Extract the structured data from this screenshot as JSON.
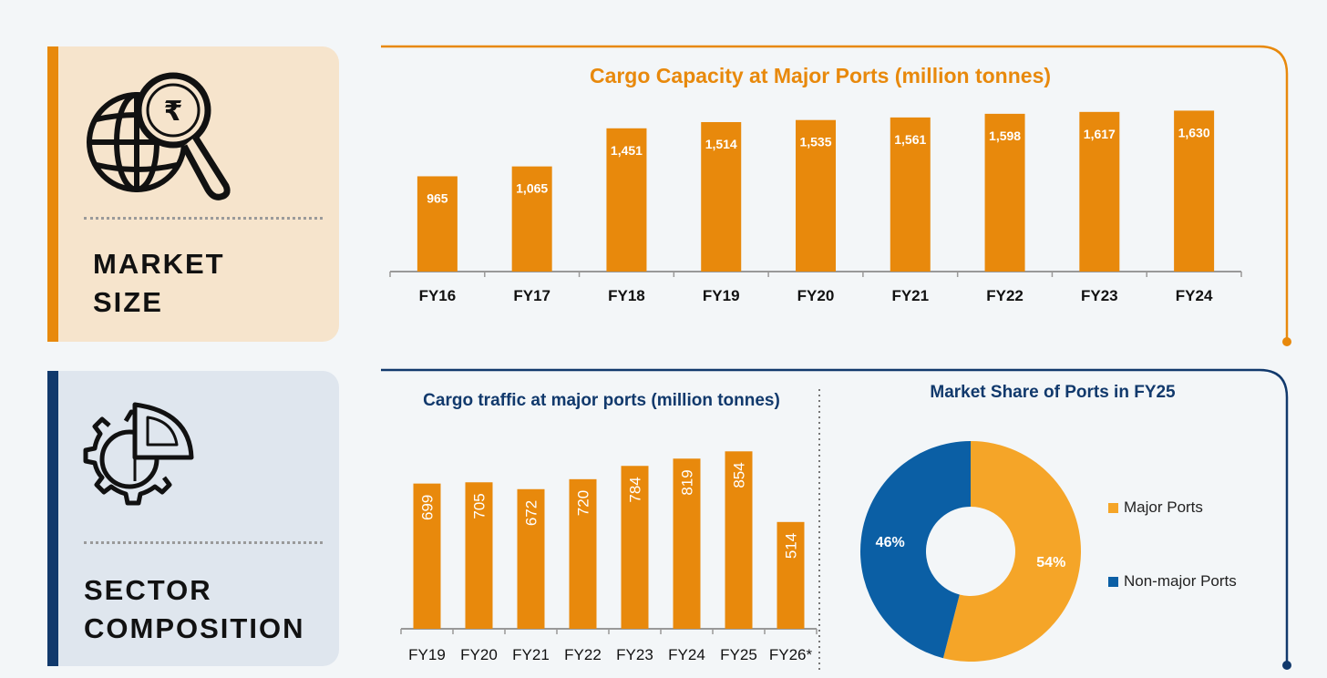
{
  "sections": {
    "market": {
      "label_line1": "MARKET",
      "label_line2": "SIZE",
      "icon": "globe-rupee-magnifier-icon"
    },
    "sector": {
      "label_line1": "SECTOR",
      "label_line2": "COMPOSITION",
      "icon": "gear-pie-chart-icon"
    }
  },
  "colors": {
    "orange": "#e8890c",
    "navy": "#11396c",
    "pie_orange": "#f5a528",
    "pie_blue": "#0b5fa5"
  },
  "chart_data": [
    {
      "type": "bar",
      "title": "Cargo Capacity at Major Ports (million tonnes)",
      "categories": [
        "FY16",
        "FY17",
        "FY18",
        "FY19",
        "FY20",
        "FY21",
        "FY22",
        "FY23",
        "FY24"
      ],
      "values": [
        965,
        1065,
        1451,
        1514,
        1535,
        1561,
        1598,
        1617,
        1630
      ],
      "labels": [
        "965",
        "1,065",
        "1,451",
        "1,514",
        "1,535",
        "1,561",
        "1,598",
        "1,617",
        "1,630"
      ],
      "ylim": [
        0,
        1800
      ]
    },
    {
      "type": "bar",
      "title": "Cargo traffic at major ports (million tonnes)",
      "categories": [
        "FY19",
        "FY20",
        "FY21",
        "FY22",
        "FY23",
        "FY24",
        "FY25",
        "FY26*"
      ],
      "values": [
        699,
        705,
        672,
        720,
        784,
        819,
        854,
        514
      ],
      "labels": [
        "699",
        "705",
        "672",
        "720",
        "784",
        "819",
        "854",
        "514"
      ],
      "ylim": [
        0,
        1000
      ]
    },
    {
      "type": "pie",
      "title": "Market Share of Ports in FY25",
      "slices": [
        {
          "name": "Major Ports",
          "value": 54,
          "label": "54%"
        },
        {
          "name": "Non-major Ports",
          "value": 46,
          "label": "46%"
        }
      ]
    }
  ]
}
